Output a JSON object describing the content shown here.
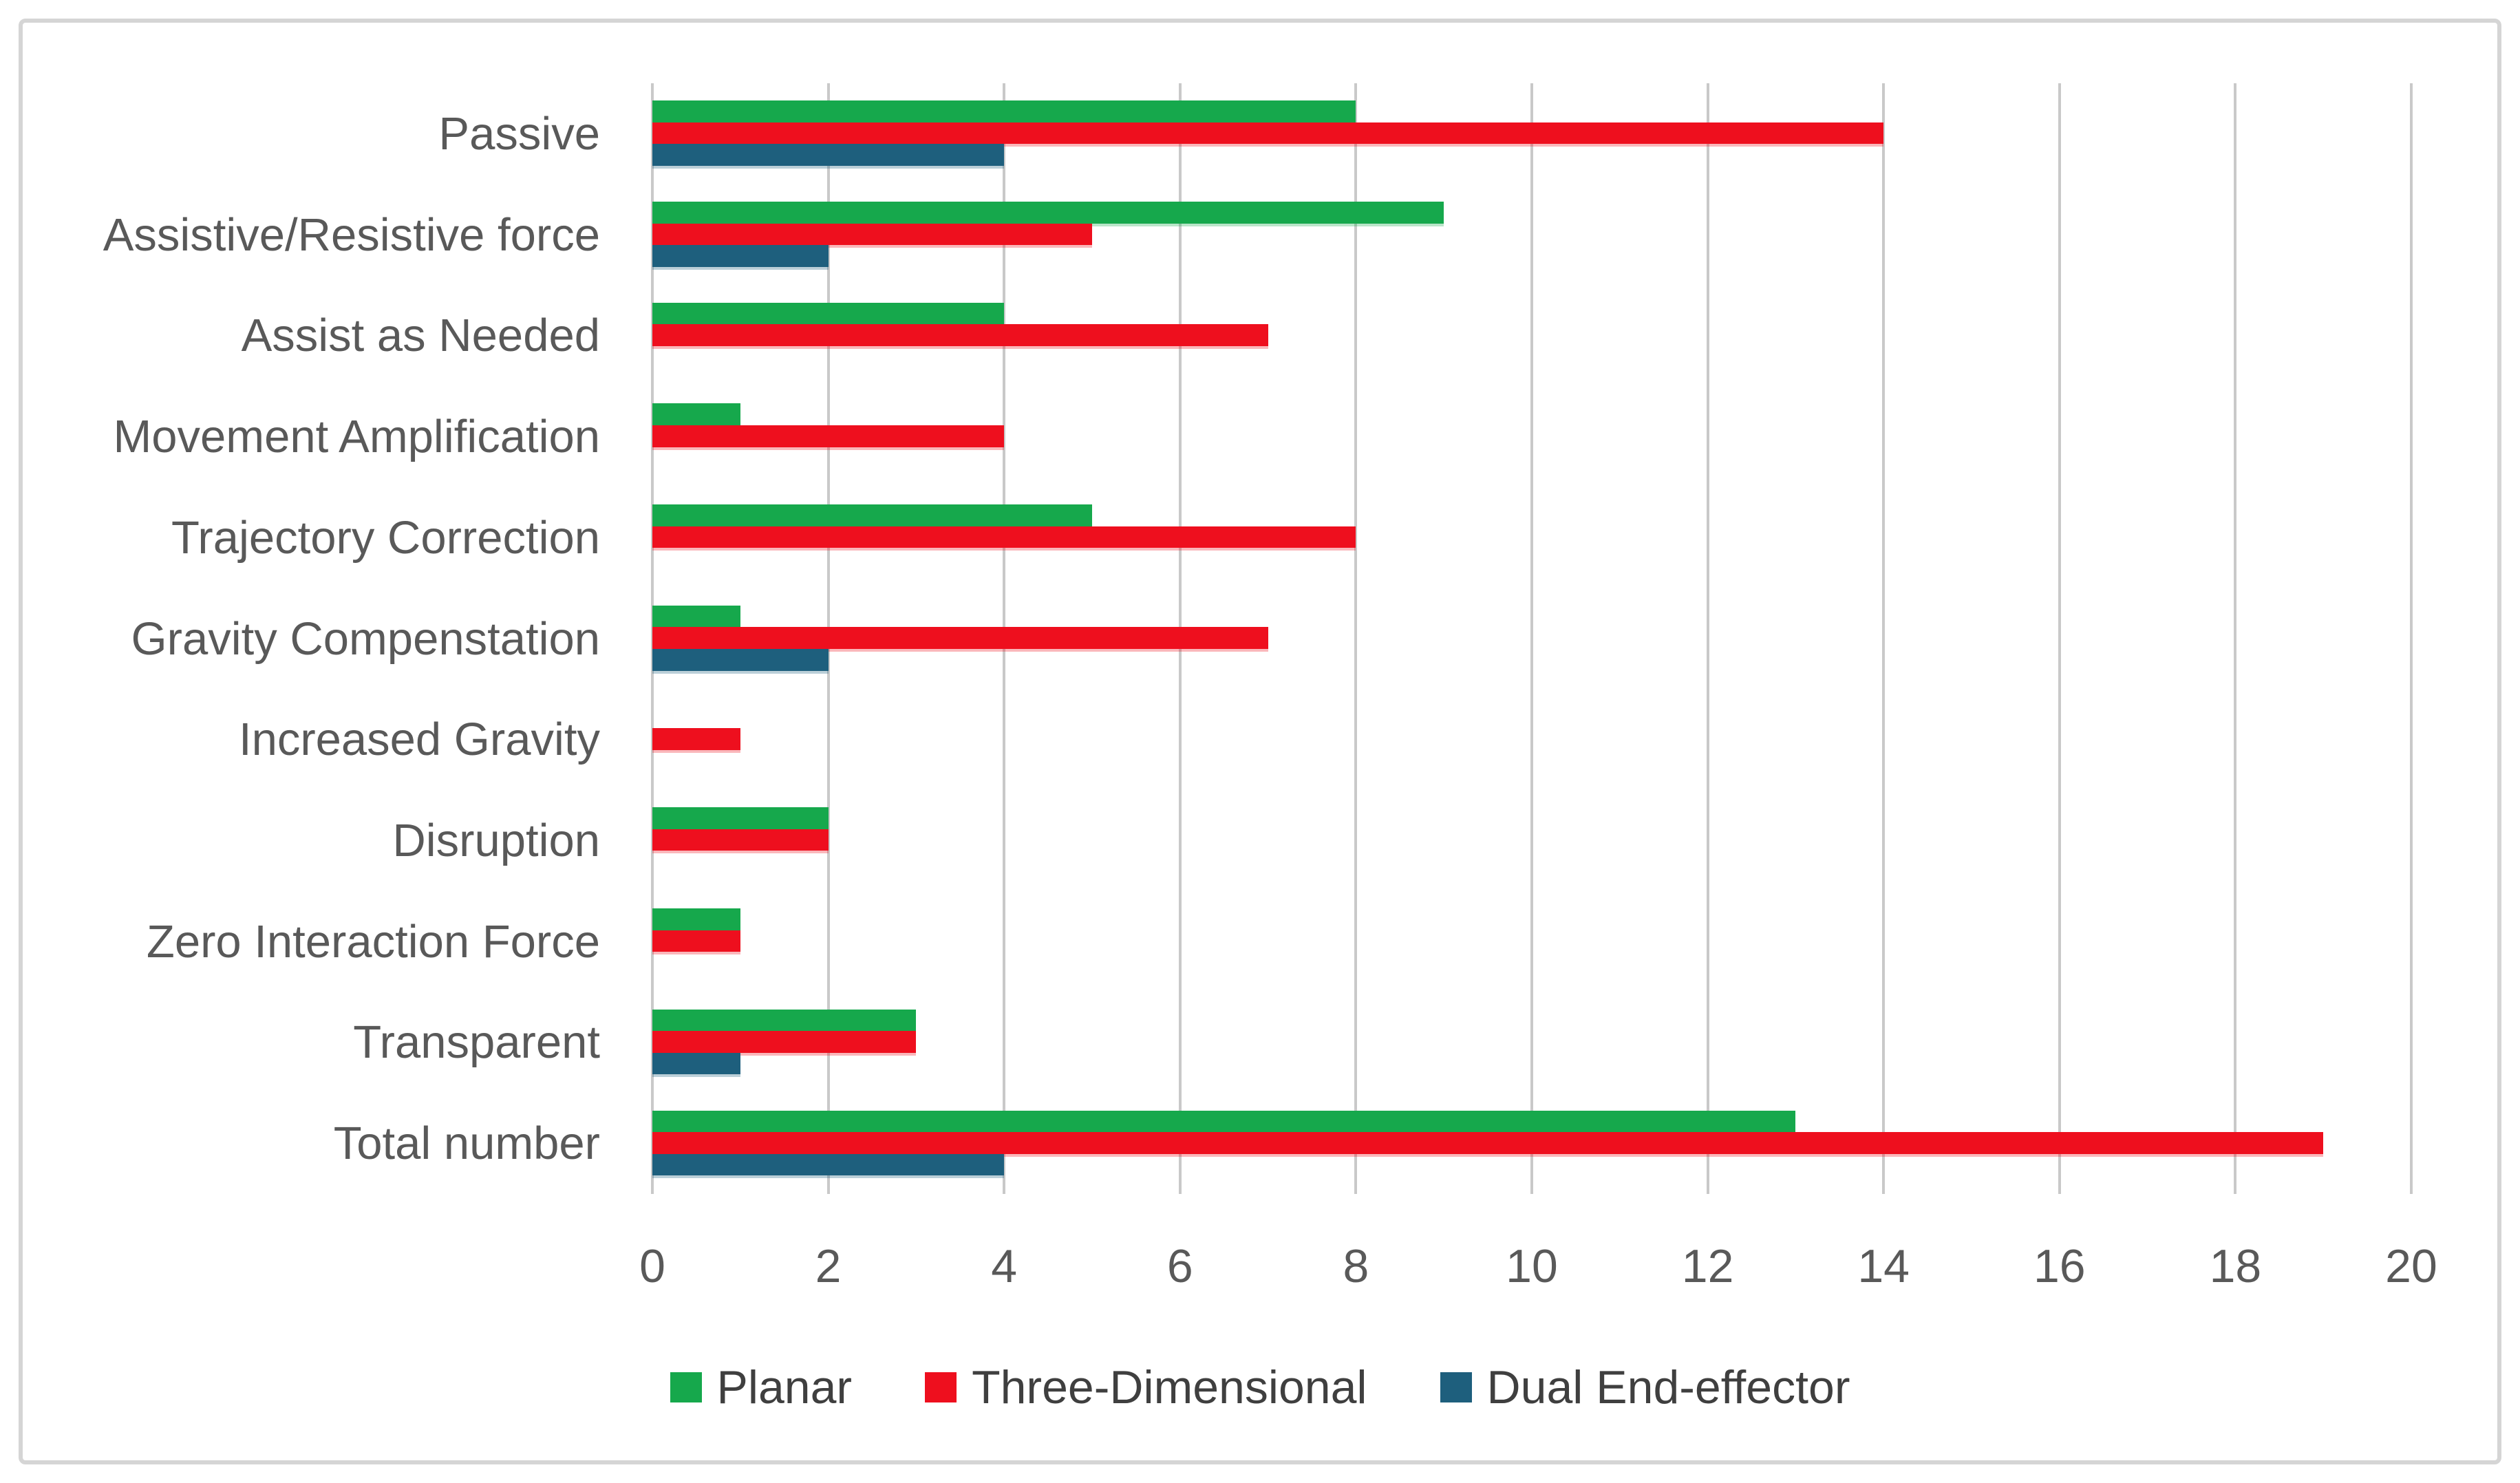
{
  "figure": {
    "background_color": "#ffffff",
    "frame_border_color": "#d5d5d5",
    "axis_text_color": "#595959",
    "legend_text_color": "#3f3f3f",
    "gridline_color": "#c9c9c9"
  },
  "chart_data": {
    "type": "bar",
    "orientation": "horizontal",
    "title": "",
    "xlabel": "",
    "ylabel": "",
    "xlim": [
      0,
      20
    ],
    "xticks": [
      0,
      2,
      4,
      6,
      8,
      10,
      12,
      14,
      16,
      18,
      20
    ],
    "grid": true,
    "legend_position": "bottom",
    "categories": [
      "Passive",
      "Assistive/Resistive force",
      "Assist as Needed",
      "Movement Amplification",
      "Trajectory Correction",
      "Gravity Compenstation",
      "Increased Gravity",
      "Disruption",
      "Zero Interaction Force",
      "Transparent",
      "Total number"
    ],
    "series": [
      {
        "name": "Planar",
        "color": "#16a84c",
        "values": [
          8,
          9,
          4,
          1,
          5,
          1,
          null,
          2,
          1,
          3,
          13
        ]
      },
      {
        "name": "Three-Dimensional",
        "color": "#ee0f1e",
        "values": [
          14,
          5,
          7,
          4,
          8,
          7,
          1,
          2,
          1,
          3,
          19
        ]
      },
      {
        "name": "Dual End-effector",
        "color": "#1e5f7d",
        "values": [
          4,
          2,
          null,
          null,
          null,
          2,
          null,
          null,
          null,
          1,
          4
        ]
      }
    ]
  }
}
